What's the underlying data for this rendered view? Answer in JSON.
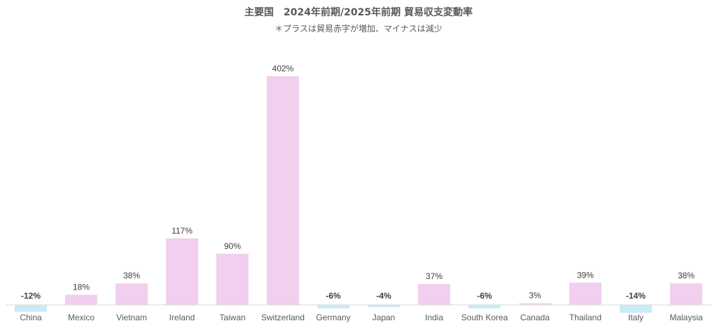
{
  "chart_data": {
    "type": "bar",
    "title": "主要国　2024年前期/2025年前期 貿易収支変動率",
    "subtitle": "＊プラスは貿易赤字が増加、マイナスは減少",
    "categories": [
      "China",
      "Mexico",
      "Vietnam",
      "Ireland",
      "Taiwan",
      "Switzerland",
      "Germany",
      "Japan",
      "India",
      "South Korea",
      "Canada",
      "Thailand",
      "Italy",
      "Malaysia"
    ],
    "values": [
      -12,
      18,
      38,
      117,
      90,
      402,
      -6,
      -4,
      37,
      -6,
      3,
      39,
      -14,
      38
    ],
    "labels": [
      "-12%",
      "18%",
      "38%",
      "117%",
      "90%",
      "402%",
      "-6%",
      "-4%",
      "37%",
      "-6%",
      "3%",
      "39%",
      "-14%",
      "38%"
    ],
    "unit": "%",
    "ylim": [
      -14,
      402
    ],
    "grid": false,
    "legend": "none",
    "colors": {
      "positive": "#f2cfee",
      "negative": "#c9ebf7",
      "axis": "#d9d9d9"
    }
  }
}
